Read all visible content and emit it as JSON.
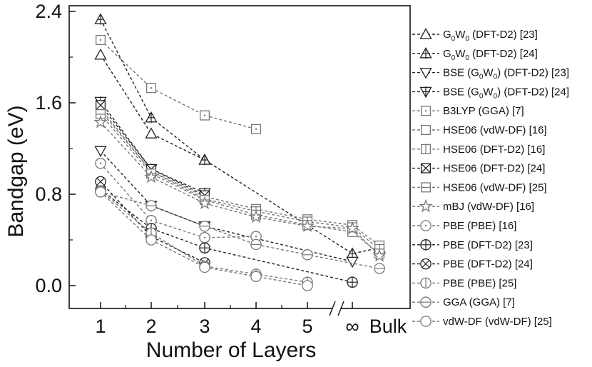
{
  "chart_data": {
    "type": "line",
    "xlabel": "Number of Layers",
    "ylabel": "Bandgap (eV)",
    "ylim": [
      -0.2,
      2.45
    ],
    "yticks": [
      "0.0",
      "0.8",
      "1.6",
      "2.4"
    ],
    "categories": [
      "1",
      "2",
      "3",
      "4",
      "5",
      "∞",
      "Bulk"
    ],
    "axis_break": "between 5 and ∞",
    "grid": false,
    "legend_position": "right",
    "series": [
      {
        "name": "G0W0 (DFT-D2) [23]",
        "label_main": "G",
        "label_sub1": "0",
        "label_mid": "W",
        "label_sub2": "0",
        "label_rest": " (DFT-D2) [23]",
        "marker": "triangle-up",
        "color": "#222222",
        "points": [
          [
            1,
            2.02
          ],
          [
            2,
            1.33
          ],
          [
            3,
            1.1
          ]
        ]
      },
      {
        "name": "G0W0 (DFT-D2) [24]",
        "label_main": "G",
        "label_sub1": "0",
        "label_mid": "W",
        "label_sub2": "0",
        "label_rest": " (DFT-D2) [24]",
        "marker": "triangle-up-cross",
        "color": "#222222",
        "points": [
          [
            1,
            2.33
          ],
          [
            2,
            1.47
          ],
          [
            3,
            1.1
          ],
          [
            "∞",
            0.28
          ],
          [
            "Bulk",
            0.33
          ]
        ]
      },
      {
        "name": "BSE (G0W0) (DFT-D2) [23]",
        "label_main": "BSE (G",
        "label_sub1": "0",
        "label_mid": "W",
        "label_sub2": "0",
        "label_rest": ") (DFT-D2) [23]",
        "marker": "triangle-down",
        "color": "#222222",
        "points": [
          [
            1,
            1.18
          ],
          [
            2,
            0.7
          ],
          [
            3,
            0.52
          ],
          [
            "∞",
            0.21
          ]
        ]
      },
      {
        "name": "BSE (G0W0) (DFT-D2) [24]",
        "label_main": "BSE (G",
        "label_sub1": "0",
        "label_mid": "W",
        "label_sub2": "0",
        "label_rest": ") (DFT-D2) [24]",
        "marker": "triangle-down-cross",
        "color": "#222222",
        "points": [
          [
            1,
            1.61
          ],
          [
            2,
            1.02
          ],
          [
            3,
            0.81
          ]
        ]
      },
      {
        "name": "B3LYP (GGA) [7]",
        "label_main": "B3LYP (GGA) [7]",
        "marker": "square-dot",
        "color": "#777777",
        "points": [
          [
            1,
            2.15
          ],
          [
            2,
            1.73
          ],
          [
            3,
            1.49
          ],
          [
            4,
            1.37
          ]
        ]
      },
      {
        "name": "HSE06 (vdW-DF) [16]",
        "label_main": "HSE06 (vdW-DF) [16]",
        "marker": "square",
        "color": "#777777",
        "points": [
          [
            1,
            1.53
          ],
          [
            2,
            1.0
          ],
          [
            3,
            0.78
          ],
          [
            4,
            0.67
          ],
          [
            5,
            0.58
          ],
          [
            "∞",
            0.53
          ],
          [
            "Bulk",
            0.35
          ]
        ]
      },
      {
        "name": "HSE06 (DFT-D2) [16]",
        "label_main": "HSE06 (DFT-D2) [16]",
        "marker": "square-vline",
        "color": "#777777",
        "points": [
          [
            1,
            1.55
          ],
          [
            2,
            1.0
          ],
          [
            3,
            0.76
          ],
          [
            4,
            0.65
          ],
          [
            5,
            0.56
          ],
          [
            "∞",
            0.51
          ],
          [
            "Bulk",
            0.32
          ]
        ]
      },
      {
        "name": "HSE06 (DFT-D2) [24]",
        "label_main": "HSE06 (DFT-D2) [24]",
        "marker": "square-x",
        "color": "#222222",
        "points": [
          [
            1,
            1.58
          ],
          [
            2,
            1.02
          ],
          [
            3,
            0.79
          ]
        ]
      },
      {
        "name": "HSE06 (vdW-DF) [25]",
        "label_main": "HSE06 (vdW-DF) [25]",
        "marker": "square-hline",
        "color": "#777777",
        "points": [
          [
            1,
            1.5
          ],
          [
            2,
            0.98
          ],
          [
            3,
            0.75
          ],
          [
            4,
            0.62
          ],
          [
            5,
            0.53
          ],
          [
            "∞",
            0.47
          ],
          [
            "Bulk",
            0.28
          ]
        ]
      },
      {
        "name": "mBJ (vdW-DF) [16]",
        "label_main": "mBJ (vdW-DF) [16]",
        "marker": "star",
        "color": "#777777",
        "points": [
          [
            1,
            1.43
          ],
          [
            2,
            0.95
          ],
          [
            3,
            0.72
          ],
          [
            4,
            0.6
          ],
          [
            5,
            0.52
          ],
          [
            "∞",
            0.5
          ],
          [
            "Bulk",
            0.26
          ]
        ]
      },
      {
        "name": "PBE (PBE) [16]",
        "label_main": "PBE (PBE) [16]",
        "marker": "circle-dot",
        "color": "#777777",
        "points": [
          [
            1,
            1.07
          ],
          [
            2,
            0.57
          ],
          [
            3,
            0.42
          ],
          [
            4,
            0.43
          ]
        ]
      },
      {
        "name": "PBE (DFT-D2) [23]",
        "label_main": "PBE (DFT-D2) [23]",
        "marker": "circle-plus",
        "color": "#222222",
        "points": [
          [
            1,
            0.84
          ],
          [
            2,
            0.5
          ],
          [
            3,
            0.33
          ],
          [
            "∞",
            0.03
          ]
        ]
      },
      {
        "name": "PBE (DFT-D2) [24]",
        "label_main": "PBE (DFT-D2) [24]",
        "marker": "circle-x",
        "color": "#222222",
        "points": [
          [
            1,
            0.91
          ],
          [
            2,
            0.43
          ],
          [
            3,
            0.2
          ]
        ]
      },
      {
        "name": "PBE (PBE) [25]",
        "label_main": "PBE (PBE) [25]",
        "marker": "circle-vline",
        "color": "#777777",
        "points": [
          [
            1,
            0.83
          ],
          [
            2,
            0.46
          ],
          [
            3,
            0.17
          ],
          [
            4,
            0.1
          ],
          [
            5,
            0.03
          ]
        ]
      },
      {
        "name": "GGA (GGA) [7]",
        "label_main": "GGA (GGA) [7]",
        "marker": "circle-hline",
        "color": "#777777",
        "points": [
          [
            1,
            0.82
          ],
          [
            2,
            0.7
          ],
          [
            3,
            0.52
          ],
          [
            4,
            0.36
          ],
          [
            5,
            0.27
          ],
          [
            "Bulk",
            0.15
          ]
        ]
      },
      {
        "name": "vdW-DF (vdW-DF) [25]",
        "label_main": "vdW-DF (vdW-DF) [25]",
        "marker": "circle",
        "color": "#777777",
        "points": [
          [
            1,
            0.82
          ],
          [
            2,
            0.4
          ],
          [
            3,
            0.16
          ],
          [
            4,
            0.08
          ],
          [
            5,
            0.0
          ]
        ]
      }
    ]
  }
}
